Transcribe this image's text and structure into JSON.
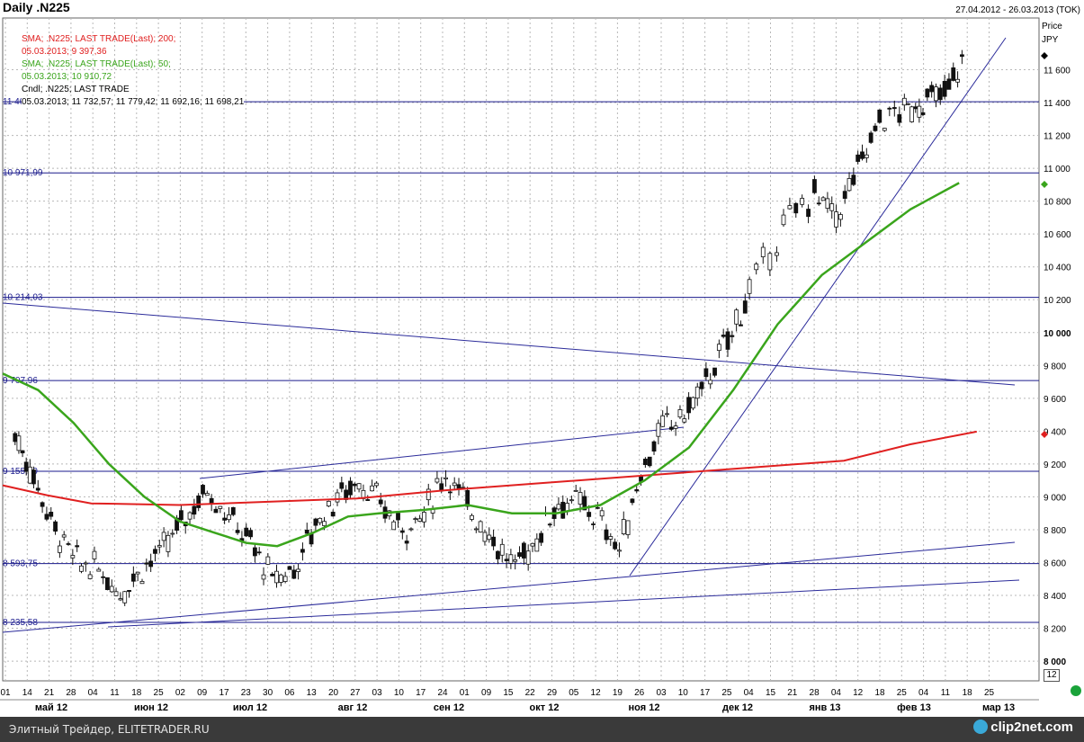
{
  "header": {
    "title": "Daily .N225",
    "range": "27.04.2012 - 26.03.2013 (TOK)"
  },
  "legend": {
    "line1": "SMA; .N225; LAST TRADE(Last);  200;",
    "line2": "05.03.2013; 9 397,36",
    "line3": "SMA; .N225; LAST TRADE(Last);  50;",
    "line4": "05.03.2013; 10 910,72",
    "line5": "Cndl; .N225; LAST TRADE",
    "line6": "05.03.2013; 11 732,57; 11 779,42; 11 692,16; 11 698,21"
  },
  "axis": {
    "price_label": "Price",
    "currency": "JPY",
    "period_box": "12",
    "y_ticks": [
      {
        "v": 11600,
        "t": "11 600"
      },
      {
        "v": 11400,
        "t": "11 400"
      },
      {
        "v": 11200,
        "t": "11 200"
      },
      {
        "v": 11000,
        "t": "11 000"
      },
      {
        "v": 10800,
        "t": "10 800"
      },
      {
        "v": 10600,
        "t": "10 600"
      },
      {
        "v": 10400,
        "t": "10 400"
      },
      {
        "v": 10200,
        "t": "10 200"
      },
      {
        "v": 10000,
        "t": "10 000"
      },
      {
        "v": 9800,
        "t": "9 800"
      },
      {
        "v": 9600,
        "t": "9 600"
      },
      {
        "v": 9400,
        "t": "9 400"
      },
      {
        "v": 9200,
        "t": "9 200"
      },
      {
        "v": 9000,
        "t": "9 000"
      },
      {
        "v": 8800,
        "t": "8 800"
      },
      {
        "v": 8600,
        "t": "8 600"
      },
      {
        "v": 8400,
        "t": "8 400"
      },
      {
        "v": 8200,
        "t": "8 200"
      },
      {
        "v": 8000,
        "t": "8 000"
      }
    ],
    "day_ticks": [
      "01",
      "14",
      "21",
      "28",
      "04",
      "11",
      "18",
      "25",
      "02",
      "09",
      "17",
      "23",
      "30",
      "06",
      "13",
      "20",
      "27",
      "03",
      "10",
      "17",
      "24",
      "01",
      "09",
      "15",
      "22",
      "29",
      "05",
      "12",
      "19",
      "26",
      "03",
      "10",
      "17",
      "25",
      "04",
      "15",
      "21",
      "28",
      "04",
      "12",
      "18",
      "25",
      "04",
      "11",
      "18",
      "25"
    ],
    "month_labels": [
      "май 12",
      "июн 12",
      "июл 12",
      "авг 12",
      "сен 12",
      "окт 12",
      "ноя 12",
      "дек 12",
      "янв 13",
      "фев 13",
      "мар 13"
    ]
  },
  "levels": [
    {
      "value": 11405,
      "label": "11 405"
    },
    {
      "value": 10971.99,
      "label": "10 971,99"
    },
    {
      "value": 10214.03,
      "label": "10 214,03"
    },
    {
      "value": 9707.96,
      "label": "9 707,96"
    },
    {
      "value": 9155.69,
      "label": "9 155,69"
    },
    {
      "value": 8593.75,
      "label": "8 593,75"
    },
    {
      "value": 8235.58,
      "label": "8 235,58"
    }
  ],
  "colors": {
    "sma200": "#e02020",
    "sma50": "#3aa51c",
    "levels": "#1a1a8c",
    "trend": "#2b2b9a",
    "grid": "#b8b8b8",
    "candle": "#111111"
  },
  "chart_data": {
    "type": "candlestick",
    "title": "Daily .N225",
    "ylim": [
      7900,
      11850
    ],
    "xlim": [
      "2012-04-27",
      "2013-03-26"
    ],
    "y_unit": "JPY",
    "close_weekly": [
      [
        "2012-05-01",
        9380
      ],
      [
        "2012-05-07",
        9120
      ],
      [
        "2012-05-14",
        8800
      ],
      [
        "2012-05-21",
        8600
      ],
      [
        "2012-05-28",
        8560
      ],
      [
        "2012-06-04",
        8420
      ],
      [
        "2012-06-11",
        8570
      ],
      [
        "2012-06-18",
        8680
      ],
      [
        "2012-06-25",
        8880
      ],
      [
        "2012-07-02",
        9050
      ],
      [
        "2012-07-09",
        8880
      ],
      [
        "2012-07-16",
        8720
      ],
      [
        "2012-07-23",
        8500
      ],
      [
        "2012-07-30",
        8560
      ],
      [
        "2012-08-06",
        8840
      ],
      [
        "2012-08-13",
        9000
      ],
      [
        "2012-08-20",
        9100
      ],
      [
        "2012-08-27",
        8950
      ],
      [
        "2012-09-03",
        8800
      ],
      [
        "2012-09-10",
        8900
      ],
      [
        "2012-09-17",
        9150
      ],
      [
        "2012-09-24",
        8950
      ],
      [
        "2012-10-01",
        8780
      ],
      [
        "2012-10-08",
        8580
      ],
      [
        "2012-10-15",
        8700
      ],
      [
        "2012-10-22",
        8950
      ],
      [
        "2012-10-29",
        8970
      ],
      [
        "2012-11-05",
        8880
      ],
      [
        "2012-11-12",
        8680
      ],
      [
        "2012-11-19",
        9150
      ],
      [
        "2012-11-26",
        9420
      ],
      [
        "2012-12-03",
        9500
      ],
      [
        "2012-12-10",
        9700
      ],
      [
        "2012-12-17",
        9950
      ],
      [
        "2012-12-24",
        10250
      ],
      [
        "2013-01-04",
        10650
      ],
      [
        "2013-01-14",
        10850
      ],
      [
        "2013-01-21",
        10700
      ],
      [
        "2013-01-28",
        11000
      ],
      [
        "2013-02-04",
        11300
      ],
      [
        "2013-02-12",
        11350
      ],
      [
        "2013-02-18",
        11400
      ],
      [
        "2013-02-25",
        11450
      ],
      [
        "2013-03-04",
        11700
      ]
    ],
    "sma200": [
      [
        0,
        9070
      ],
      [
        10,
        9010
      ],
      [
        20,
        8960
      ],
      [
        40,
        8950
      ],
      [
        60,
        8970
      ],
      [
        80,
        8990
      ],
      [
        100,
        9040
      ],
      [
        120,
        9080
      ],
      [
        140,
        9120
      ],
      [
        170,
        9180
      ],
      [
        190,
        9220
      ],
      [
        205,
        9320
      ],
      [
        220,
        9397
      ]
    ],
    "sma50": [
      [
        0,
        9750
      ],
      [
        8,
        9650
      ],
      [
        16,
        9450
      ],
      [
        24,
        9200
      ],
      [
        32,
        9000
      ],
      [
        40,
        8850
      ],
      [
        48,
        8780
      ],
      [
        55,
        8720
      ],
      [
        62,
        8700
      ],
      [
        70,
        8780
      ],
      [
        78,
        8880
      ],
      [
        85,
        8900
      ],
      [
        95,
        8920
      ],
      [
        105,
        8950
      ],
      [
        115,
        8900
      ],
      [
        125,
        8900
      ],
      [
        135,
        8950
      ],
      [
        145,
        9100
      ],
      [
        155,
        9300
      ],
      [
        165,
        9650
      ],
      [
        175,
        10050
      ],
      [
        185,
        10350
      ],
      [
        195,
        10550
      ],
      [
        205,
        10750
      ],
      [
        216,
        10911
      ]
    ]
  }
}
